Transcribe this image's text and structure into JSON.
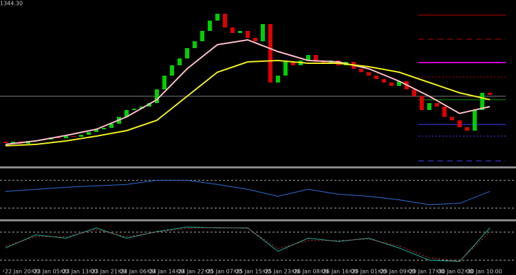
{
  "chart_data": [
    {
      "type": "candlestick",
      "price_label": "1344.30",
      "ylim": [
        1284.5,
        1345
      ],
      "up_color": "#00d000",
      "down_color": "#e00000",
      "open": [
        1293.5,
        1293,
        1293.5,
        1292.75,
        1293.75,
        1294,
        1294.25,
        1295,
        1294.75,
        1295.5,
        1295.25,
        1296,
        1297,
        1298,
        1298.5,
        1300,
        1302.5,
        1305,
        1305.5,
        1306.25,
        1307.5,
        1312.5,
        1317.5,
        1321.25,
        1323.75,
        1327.5,
        1330,
        1333.75,
        1337.5,
        1340,
        1335,
        1333,
        1333.75,
        1331.25,
        1330,
        1336.25,
        1315,
        1317.5,
        1322.5,
        1321.25,
        1323,
        1325,
        1322.5,
        1322,
        1323,
        1321.25,
        1322.5,
        1320,
        1318.75,
        1317.5,
        1316.25,
        1315,
        1313.75,
        1315.5,
        1312.5,
        1310,
        1305,
        1307.5,
        1306.25,
        1302.5,
        1301.25,
        1298.75,
        1297.5,
        1305,
        1311.25
      ],
      "close": [
        1293,
        1293.5,
        1292.75,
        1293.75,
        1294,
        1294.25,
        1295,
        1294.75,
        1295.5,
        1295.25,
        1296,
        1297,
        1298,
        1298.5,
        1300,
        1302.5,
        1305,
        1305.5,
        1306.25,
        1307.5,
        1312.5,
        1317.5,
        1321.25,
        1323.75,
        1327.5,
        1330,
        1333.75,
        1337.5,
        1340,
        1335,
        1333,
        1333.75,
        1331.25,
        1330,
        1336.25,
        1315,
        1317.5,
        1322.5,
        1321.25,
        1323,
        1325,
        1322.5,
        1322,
        1323,
        1321.25,
        1322.5,
        1320,
        1318.75,
        1317.5,
        1316.25,
        1315,
        1313.75,
        1315.5,
        1312.5,
        1310,
        1305,
        1307.5,
        1306.25,
        1302.5,
        1301.25,
        1298.75,
        1297.5,
        1305,
        1311.25,
        1310.5
      ],
      "lines": [
        {
          "color": "#ffc0cb",
          "x": [
            0,
            4,
            8,
            12,
            16,
            20,
            24,
            28,
            32,
            36,
            40,
            44,
            48,
            52,
            56,
            60,
            64
          ],
          "values": [
            1292.5,
            1293.75,
            1295.75,
            1298,
            1302.5,
            1308.75,
            1320,
            1328.75,
            1330.5,
            1326.25,
            1323,
            1322.5,
            1320,
            1315.5,
            1310,
            1303.75,
            1306.25
          ]
        },
        {
          "color": "#f0f020",
          "x": [
            0,
            4,
            8,
            12,
            16,
            20,
            24,
            28,
            32,
            36,
            40,
            44,
            48,
            52,
            56,
            60,
            64
          ],
          "values": [
            1292,
            1292.5,
            1293.75,
            1295.5,
            1297.5,
            1301.25,
            1310,
            1318.75,
            1322.5,
            1323,
            1322,
            1322,
            1320.75,
            1318.75,
            1315,
            1311.25,
            1308.75
          ]
        }
      ],
      "levels": [
        {
          "value": 1339.5,
          "color": "#c00000",
          "style": "solid"
        },
        {
          "value": 1330.75,
          "color": "#c00000",
          "style": "dashed"
        },
        {
          "value": 1322.25,
          "color": "#d000d0",
          "style": "solid"
        },
        {
          "value": 1317,
          "color": "#c00000",
          "style": "dotted"
        },
        {
          "value": 1310,
          "color": "#808080",
          "style": "solid",
          "full_width": true
        },
        {
          "value": 1308.75,
          "color": "#00a000",
          "style": "solid"
        },
        {
          "value": 1299.75,
          "color": "#4040ff",
          "style": "solid"
        },
        {
          "value": 1295.5,
          "color": "#4040ff",
          "style": "dotted"
        },
        {
          "value": 1286.5,
          "color": "#4040ff",
          "style": "dashed"
        }
      ]
    },
    {
      "type": "line",
      "ylim": [
        15,
        85
      ],
      "levels": [
        70,
        30
      ],
      "x": [
        0,
        4,
        8,
        12,
        16,
        20,
        24,
        28,
        32,
        36,
        40,
        44,
        48,
        52,
        56,
        60,
        64
      ],
      "series": [
        {
          "color": "#2f6fd8",
          "values": [
            54,
            57,
            60,
            62,
            64,
            70,
            70,
            64,
            57,
            47,
            57,
            50,
            47,
            42,
            35,
            37,
            54
          ]
        }
      ]
    },
    {
      "type": "line",
      "ylim": [
        0,
        100
      ],
      "levels": [
        80,
        20
      ],
      "x": [
        0,
        4,
        8,
        12,
        16,
        20,
        24,
        28,
        32,
        36,
        40,
        44,
        48,
        52,
        56,
        60,
        64
      ],
      "series": [
        {
          "color": "#20b0a0",
          "style": "solid",
          "values": [
            46,
            74,
            67,
            89,
            67,
            81,
            91,
            89,
            89,
            39,
            67,
            60,
            67,
            46,
            20,
            17,
            89
          ]
        },
        {
          "color": "#e03030",
          "style": "dotted",
          "values": [
            50,
            70,
            70,
            85,
            70,
            80,
            88,
            90,
            88,
            45,
            62,
            62,
            65,
            50,
            25,
            18,
            80
          ]
        }
      ],
      "time_labels": [
        "22 Jan 20:00",
        "23 Jan 05:00",
        "23 Jan 13:00",
        "23 Jan 21:00",
        "24 Jan 06:00",
        "24 Jan 14:00",
        "24 Jan 22:00",
        "25 Jan 07:00",
        "25 Jan 15:00",
        "25 Jan 23:00",
        "26 Jan 08:00",
        "26 Jan 16:00",
        "29 Jan 01:00",
        "29 Jan 09:00",
        "29 Jan 17:00",
        "30 Jan 02:00",
        "30 Jan 10:00"
      ]
    }
  ]
}
